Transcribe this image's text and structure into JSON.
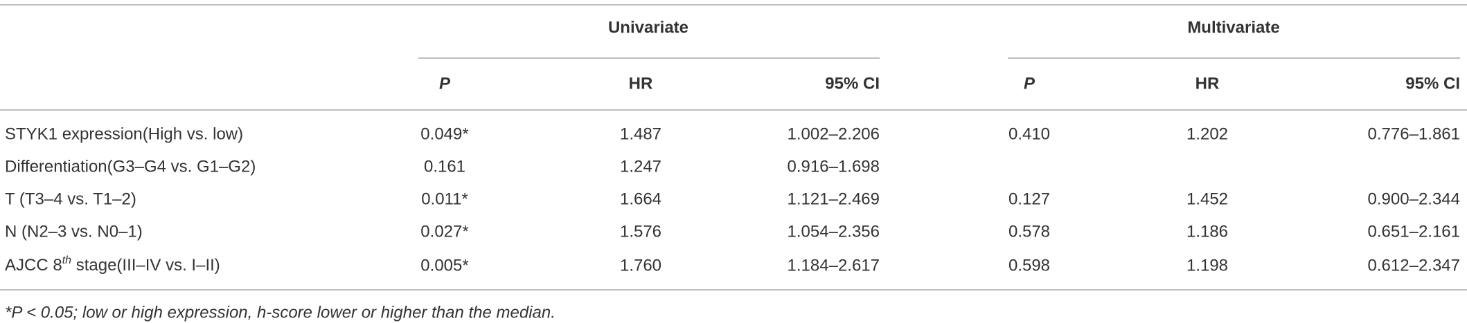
{
  "table": {
    "groups": [
      "Univariate",
      "Multivariate"
    ],
    "columns": [
      "P",
      "HR",
      "95% CI",
      "P",
      "HR",
      "95% CI"
    ],
    "rows": [
      {
        "label": "STYK1 expression(High vs. low)",
        "cells": [
          "0.049*",
          "1.487",
          "1.002–2.206",
          "0.410",
          "1.202",
          "0.776–1.861"
        ]
      },
      {
        "label": "Differentiation(G3–G4 vs. G1–G2)",
        "cells": [
          "0.161",
          "1.247",
          "0.916–1.698",
          null,
          null,
          null
        ]
      },
      {
        "label": "T (T3–4 vs. T1–2)",
        "cells": [
          "0.011*",
          "1.664",
          "1.121–2.469",
          "0.127",
          "1.452",
          "0.900–2.344"
        ]
      },
      {
        "label": "N (N2–3 vs. N0–1)",
        "cells": [
          "0.027*",
          "1.576",
          "1.054–2.356",
          "0.578",
          "1.186",
          "0.651–2.161"
        ]
      },
      {
        "label_parts": [
          "AJCC 8",
          "th",
          " stage(III–IV vs. I–II)"
        ],
        "cells": [
          "0.005*",
          "1.760",
          "1.184–2.617",
          "0.598",
          "1.198",
          "0.612–2.347"
        ]
      }
    ],
    "footnote": "*P < 0.05; low or high expression, h-score lower or higher than the median."
  }
}
